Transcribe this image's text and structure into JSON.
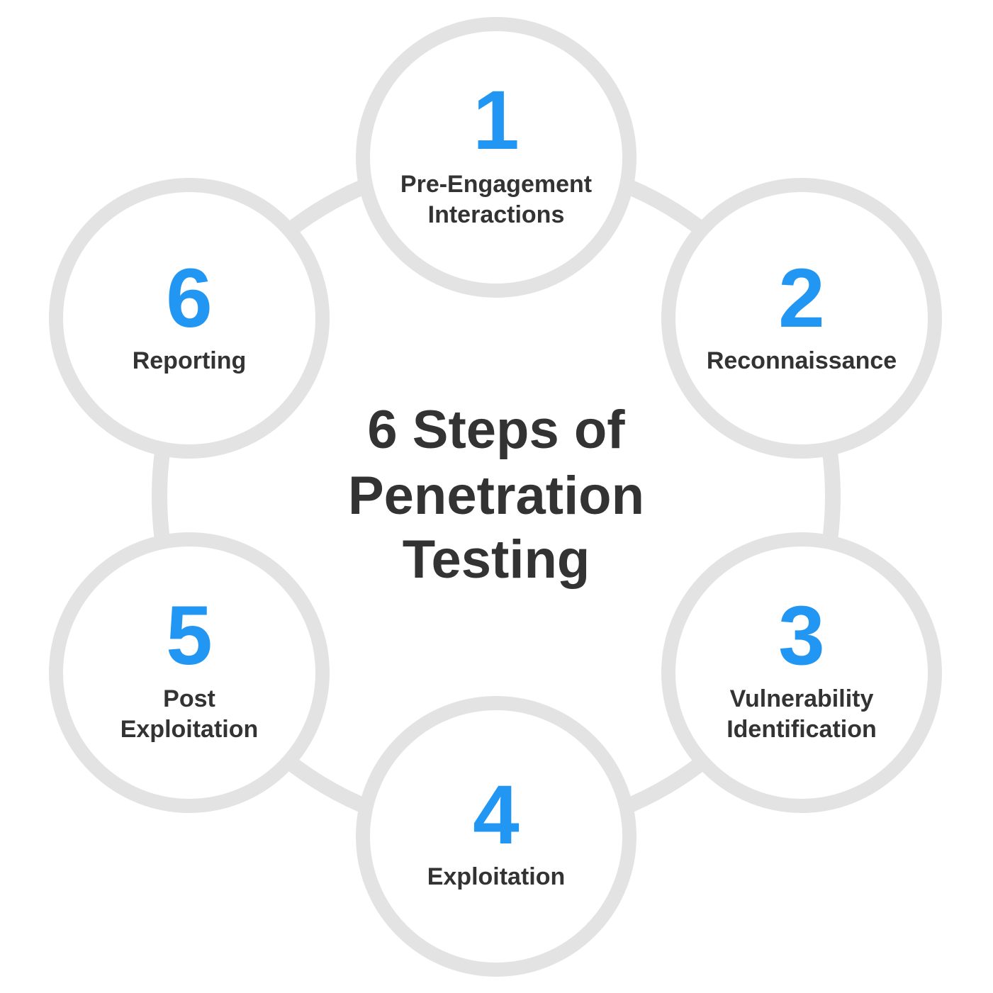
{
  "title_lines": [
    "6 Steps of",
    "Penetration",
    "Testing"
  ],
  "steps": [
    {
      "number": "1",
      "label_lines": [
        "Pre-Engagement",
        "Interactions"
      ]
    },
    {
      "number": "2",
      "label_lines": [
        "Reconnaissance"
      ]
    },
    {
      "number": "3",
      "label_lines": [
        "Vulnerability",
        "Identification"
      ]
    },
    {
      "number": "4",
      "label_lines": [
        "Exploitation"
      ]
    },
    {
      "number": "5",
      "label_lines": [
        "Post",
        "Exploitation"
      ]
    },
    {
      "number": "6",
      "label_lines": [
        "Reporting"
      ]
    }
  ],
  "colors": {
    "number": "#2196f3",
    "text": "#333333",
    "ring": "#e3e3e3",
    "background": "#ffffff"
  }
}
